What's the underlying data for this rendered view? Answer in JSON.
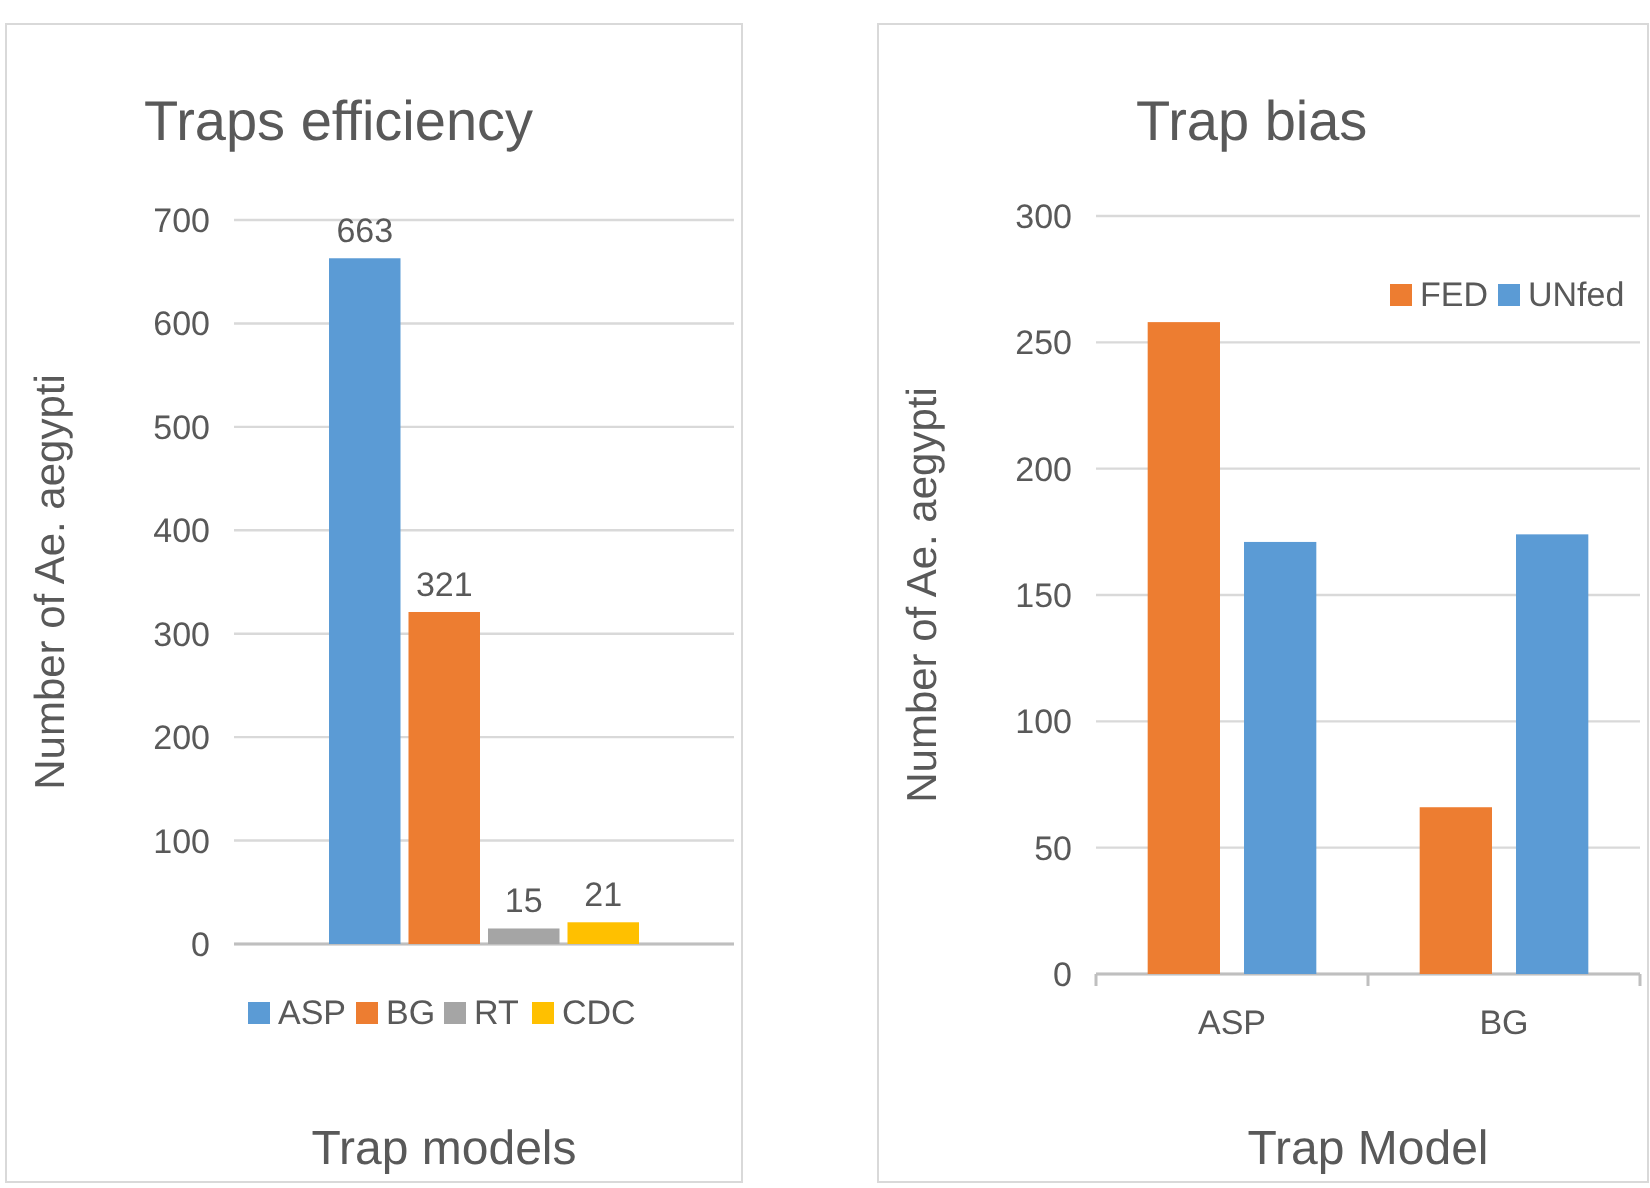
{
  "chart_data": [
    {
      "type": "bar",
      "title": "Traps efficiency",
      "xlabel": "Trap models",
      "ylabel": "Number of Ae. aegypti",
      "categories": [
        null
      ],
      "series": [
        {
          "name": "ASP",
          "color": "#5b9bd5",
          "values": [
            663
          ]
        },
        {
          "name": "BG",
          "color": "#ed7d31",
          "values": [
            321
          ]
        },
        {
          "name": "RT",
          "color": "#a5a5a5",
          "values": [
            15
          ]
        },
        {
          "name": "CDC",
          "color": "#ffc000",
          "values": [
            21
          ]
        }
      ],
      "ylim": [
        0,
        700
      ],
      "yticks": [
        0,
        100,
        200,
        300,
        400,
        500,
        600,
        700
      ],
      "grid": "y",
      "legend": "bottom",
      "data_labels": true
    },
    {
      "type": "bar",
      "title": "Trap bias",
      "xlabel": "Trap Model",
      "ylabel": "Number of Ae. aegypti",
      "categories": [
        "ASP",
        "BG"
      ],
      "series": [
        {
          "name": "FED",
          "color": "#ed7d31",
          "values": [
            258,
            66
          ]
        },
        {
          "name": "UNfed",
          "color": "#5b9bd5",
          "values": [
            171,
            174
          ]
        }
      ],
      "ylim": [
        0,
        300
      ],
      "yticks": [
        0,
        50,
        100,
        150,
        200,
        250,
        300
      ],
      "grid": "y",
      "legend": "top right"
    }
  ]
}
